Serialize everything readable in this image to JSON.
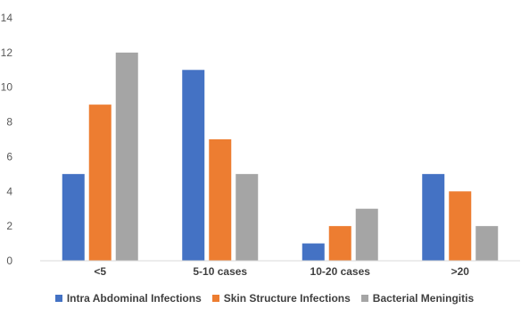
{
  "chart_data": {
    "type": "bar",
    "categories": [
      "<5",
      "5-10 cases",
      "10-20 cases",
      ">20"
    ],
    "series": [
      {
        "name": "Intra Abdominal Infections",
        "color": "#4472C4",
        "values": [
          5,
          11,
          1,
          5
        ]
      },
      {
        "name": "Skin Structure Infections",
        "color": "#ED7D31",
        "values": [
          9,
          7,
          2,
          4
        ]
      },
      {
        "name": "Bacterial Meningitis",
        "color": "#A5A5A5",
        "values": [
          12,
          5,
          3,
          2
        ]
      }
    ],
    "ylim": [
      0,
      14
    ],
    "yticks": [
      "0",
      "2",
      "4",
      "6",
      "8",
      "10",
      "12",
      "14"
    ],
    "grid": false,
    "legend_position": "bottom",
    "title": "",
    "xlabel": "",
    "ylabel": ""
  }
}
